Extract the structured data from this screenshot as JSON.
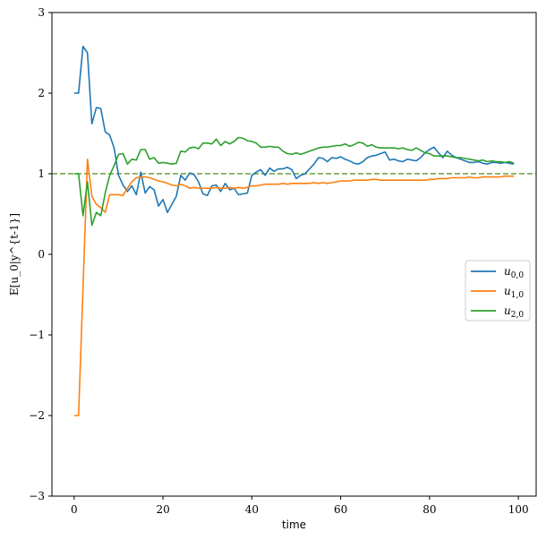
{
  "chart_data": {
    "type": "line",
    "xlabel": "time",
    "ylabel": "E[u_0|y^{t-1}]",
    "xlim": [
      -5,
      104
    ],
    "ylim": [
      -3,
      3
    ],
    "xticks": [
      0,
      20,
      40,
      60,
      80,
      100
    ],
    "yticks": [
      -3,
      -2,
      -1,
      0,
      1,
      2,
      3
    ],
    "ytick_labels": [
      "−3",
      "−2",
      "−1",
      "0",
      "1",
      "2",
      "3"
    ],
    "reference_line": {
      "y": 1,
      "style": "dashed",
      "color": "#6a9f3a"
    },
    "legend_position": "center-right",
    "series": [
      {
        "name": "u0,0",
        "name_main": "u",
        "name_sub": "0,0",
        "color": "#1f77b4",
        "x": [
          0,
          1,
          2,
          3,
          4,
          5,
          6,
          7,
          8,
          9,
          10,
          11,
          12,
          13,
          14,
          15,
          16,
          17,
          18,
          19,
          20,
          21,
          22,
          23,
          24,
          25,
          26,
          27,
          28,
          29,
          30,
          31,
          32,
          33,
          34,
          35,
          36,
          37,
          38,
          39,
          40,
          41,
          42,
          43,
          44,
          45,
          46,
          47,
          48,
          49,
          50,
          51,
          52,
          53,
          54,
          55,
          56,
          57,
          58,
          59,
          60,
          61,
          62,
          63,
          64,
          65,
          66,
          67,
          68,
          69,
          70,
          71,
          72,
          73,
          74,
          75,
          76,
          77,
          78,
          79,
          80,
          81,
          82,
          83,
          84,
          85,
          86,
          87,
          88,
          89,
          90,
          91,
          92,
          93,
          94,
          95,
          96,
          97,
          98,
          99
        ],
        "y": [
          2.0,
          2.0,
          2.58,
          2.5,
          1.62,
          1.82,
          1.81,
          1.52,
          1.48,
          1.32,
          0.98,
          0.86,
          0.78,
          0.85,
          0.74,
          1.02,
          0.76,
          0.84,
          0.8,
          0.6,
          0.68,
          0.52,
          0.62,
          0.72,
          0.98,
          0.92,
          1.01,
          0.99,
          0.9,
          0.75,
          0.73,
          0.85,
          0.86,
          0.78,
          0.88,
          0.8,
          0.82,
          0.74,
          0.75,
          0.76,
          0.98,
          1.02,
          1.05,
          0.98,
          1.07,
          1.03,
          1.06,
          1.06,
          1.08,
          1.05,
          0.94,
          0.98,
          1.0,
          1.06,
          1.12,
          1.2,
          1.19,
          1.15,
          1.2,
          1.19,
          1.21,
          1.18,
          1.16,
          1.13,
          1.12,
          1.15,
          1.2,
          1.22,
          1.23,
          1.25,
          1.27,
          1.17,
          1.18,
          1.16,
          1.15,
          1.18,
          1.17,
          1.16,
          1.2,
          1.26,
          1.3,
          1.33,
          1.26,
          1.2,
          1.28,
          1.23,
          1.2,
          1.18,
          1.16,
          1.14,
          1.14,
          1.15,
          1.13,
          1.12,
          1.14,
          1.14,
          1.13,
          1.14,
          1.13,
          1.12
        ]
      },
      {
        "name": "u1,0",
        "name_main": "u",
        "name_sub": "1,0",
        "color": "#ff7f0e",
        "x": [
          0,
          1,
          2,
          3,
          4,
          5,
          6,
          7,
          8,
          9,
          10,
          11,
          12,
          13,
          14,
          15,
          16,
          17,
          18,
          19,
          20,
          21,
          22,
          23,
          24,
          25,
          26,
          27,
          28,
          29,
          30,
          31,
          32,
          33,
          34,
          35,
          36,
          37,
          38,
          39,
          40,
          41,
          42,
          43,
          44,
          45,
          46,
          47,
          48,
          49,
          50,
          51,
          52,
          53,
          54,
          55,
          56,
          57,
          58,
          59,
          60,
          61,
          62,
          63,
          64,
          65,
          66,
          67,
          68,
          69,
          70,
          71,
          72,
          73,
          74,
          75,
          76,
          77,
          78,
          79,
          80,
          81,
          82,
          83,
          84,
          85,
          86,
          87,
          88,
          89,
          90,
          91,
          92,
          93,
          94,
          95,
          96,
          97,
          98,
          99
        ],
        "y": [
          -2.0,
          -2.0,
          -0.42,
          1.18,
          0.72,
          0.62,
          0.58,
          0.52,
          0.74,
          0.74,
          0.74,
          0.73,
          0.82,
          0.9,
          0.95,
          0.96,
          0.96,
          0.95,
          0.93,
          0.91,
          0.9,
          0.88,
          0.86,
          0.85,
          0.87,
          0.85,
          0.82,
          0.83,
          0.82,
          0.82,
          0.82,
          0.82,
          0.83,
          0.82,
          0.82,
          0.83,
          0.82,
          0.83,
          0.82,
          0.83,
          0.85,
          0.85,
          0.86,
          0.87,
          0.87,
          0.87,
          0.87,
          0.88,
          0.87,
          0.88,
          0.88,
          0.88,
          0.88,
          0.88,
          0.89,
          0.88,
          0.89,
          0.88,
          0.89,
          0.9,
          0.91,
          0.91,
          0.91,
          0.92,
          0.92,
          0.92,
          0.92,
          0.93,
          0.93,
          0.92,
          0.92,
          0.92,
          0.92,
          0.92,
          0.92,
          0.92,
          0.92,
          0.92,
          0.92,
          0.92,
          0.93,
          0.93,
          0.94,
          0.94,
          0.94,
          0.95,
          0.95,
          0.95,
          0.95,
          0.96,
          0.95,
          0.95,
          0.96,
          0.96,
          0.96,
          0.96,
          0.96,
          0.97,
          0.97,
          0.97
        ]
      },
      {
        "name": "u2,0",
        "name_main": "u",
        "name_sub": "2,0",
        "color": "#2ca02c",
        "x": [
          0,
          1,
          2,
          3,
          4,
          5,
          6,
          7,
          8,
          9,
          10,
          11,
          12,
          13,
          14,
          15,
          16,
          17,
          18,
          19,
          20,
          21,
          22,
          23,
          24,
          25,
          26,
          27,
          28,
          29,
          30,
          31,
          32,
          33,
          34,
          35,
          36,
          37,
          38,
          39,
          40,
          41,
          42,
          43,
          44,
          45,
          46,
          47,
          48,
          49,
          50,
          51,
          52,
          53,
          54,
          55,
          56,
          57,
          58,
          59,
          60,
          61,
          62,
          63,
          64,
          65,
          66,
          67,
          68,
          69,
          70,
          71,
          72,
          73,
          74,
          75,
          76,
          77,
          78,
          79,
          80,
          81,
          82,
          83,
          84,
          85,
          86,
          87,
          88,
          89,
          90,
          91,
          92,
          93,
          94,
          95,
          96,
          97,
          98,
          99
        ],
        "y": [
          1.0,
          1.0,
          0.48,
          0.9,
          0.36,
          0.52,
          0.48,
          0.76,
          0.98,
          1.1,
          1.24,
          1.25,
          1.12,
          1.18,
          1.17,
          1.3,
          1.3,
          1.18,
          1.2,
          1.13,
          1.14,
          1.13,
          1.12,
          1.13,
          1.28,
          1.27,
          1.32,
          1.33,
          1.31,
          1.38,
          1.38,
          1.37,
          1.43,
          1.35,
          1.4,
          1.37,
          1.4,
          1.45,
          1.44,
          1.41,
          1.4,
          1.38,
          1.33,
          1.33,
          1.34,
          1.33,
          1.33,
          1.28,
          1.25,
          1.24,
          1.26,
          1.24,
          1.26,
          1.28,
          1.3,
          1.32,
          1.33,
          1.33,
          1.34,
          1.35,
          1.35,
          1.37,
          1.34,
          1.36,
          1.39,
          1.38,
          1.34,
          1.36,
          1.33,
          1.32,
          1.32,
          1.32,
          1.32,
          1.31,
          1.32,
          1.3,
          1.29,
          1.32,
          1.29,
          1.26,
          1.25,
          1.22,
          1.22,
          1.22,
          1.22,
          1.21,
          1.2,
          1.2,
          1.19,
          1.18,
          1.17,
          1.16,
          1.17,
          1.15,
          1.16,
          1.15,
          1.15,
          1.14,
          1.15,
          1.13
        ]
      }
    ]
  }
}
